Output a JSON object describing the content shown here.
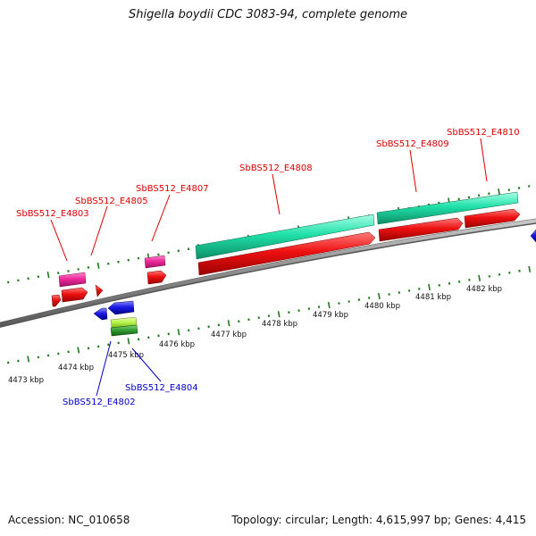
{
  "title": "Shigella boydii CDC 3083-94, complete genome",
  "footer": {
    "accession": "Accession: NC_010658",
    "summary": "Topology: circular; Length: 4,615,997 bp; Genes: 4,415"
  },
  "colors": {
    "backbone": "#8c8c8c",
    "tick": "#1f7a1f",
    "label_red": "#dd0000",
    "label_blue": "#0000cc",
    "pink": "#ee2a9a",
    "red": "#ee1111",
    "teal": "#20e0a8",
    "blue": "#1a1ae6",
    "lime": "#b6f44a",
    "green": "#2e9a2e"
  },
  "ruler_labels": [
    "4473 kbp",
    "4474 kbp",
    "4475 kbp",
    "4476 kbp",
    "4477 kbp",
    "4478 kbp",
    "4479 kbp",
    "4480 kbp",
    "4481 kbp",
    "4482 kbp"
  ],
  "genes_top": [
    "SbBS512_E4803",
    "SbBS512_E4805",
    "SbBS512_E4807",
    "SbBS512_E4808",
    "SbBS512_E4809",
    "SbBS512_E4810"
  ],
  "genes_bottom": [
    "SbBS512_E4802",
    "SbBS512_E4804"
  ]
}
